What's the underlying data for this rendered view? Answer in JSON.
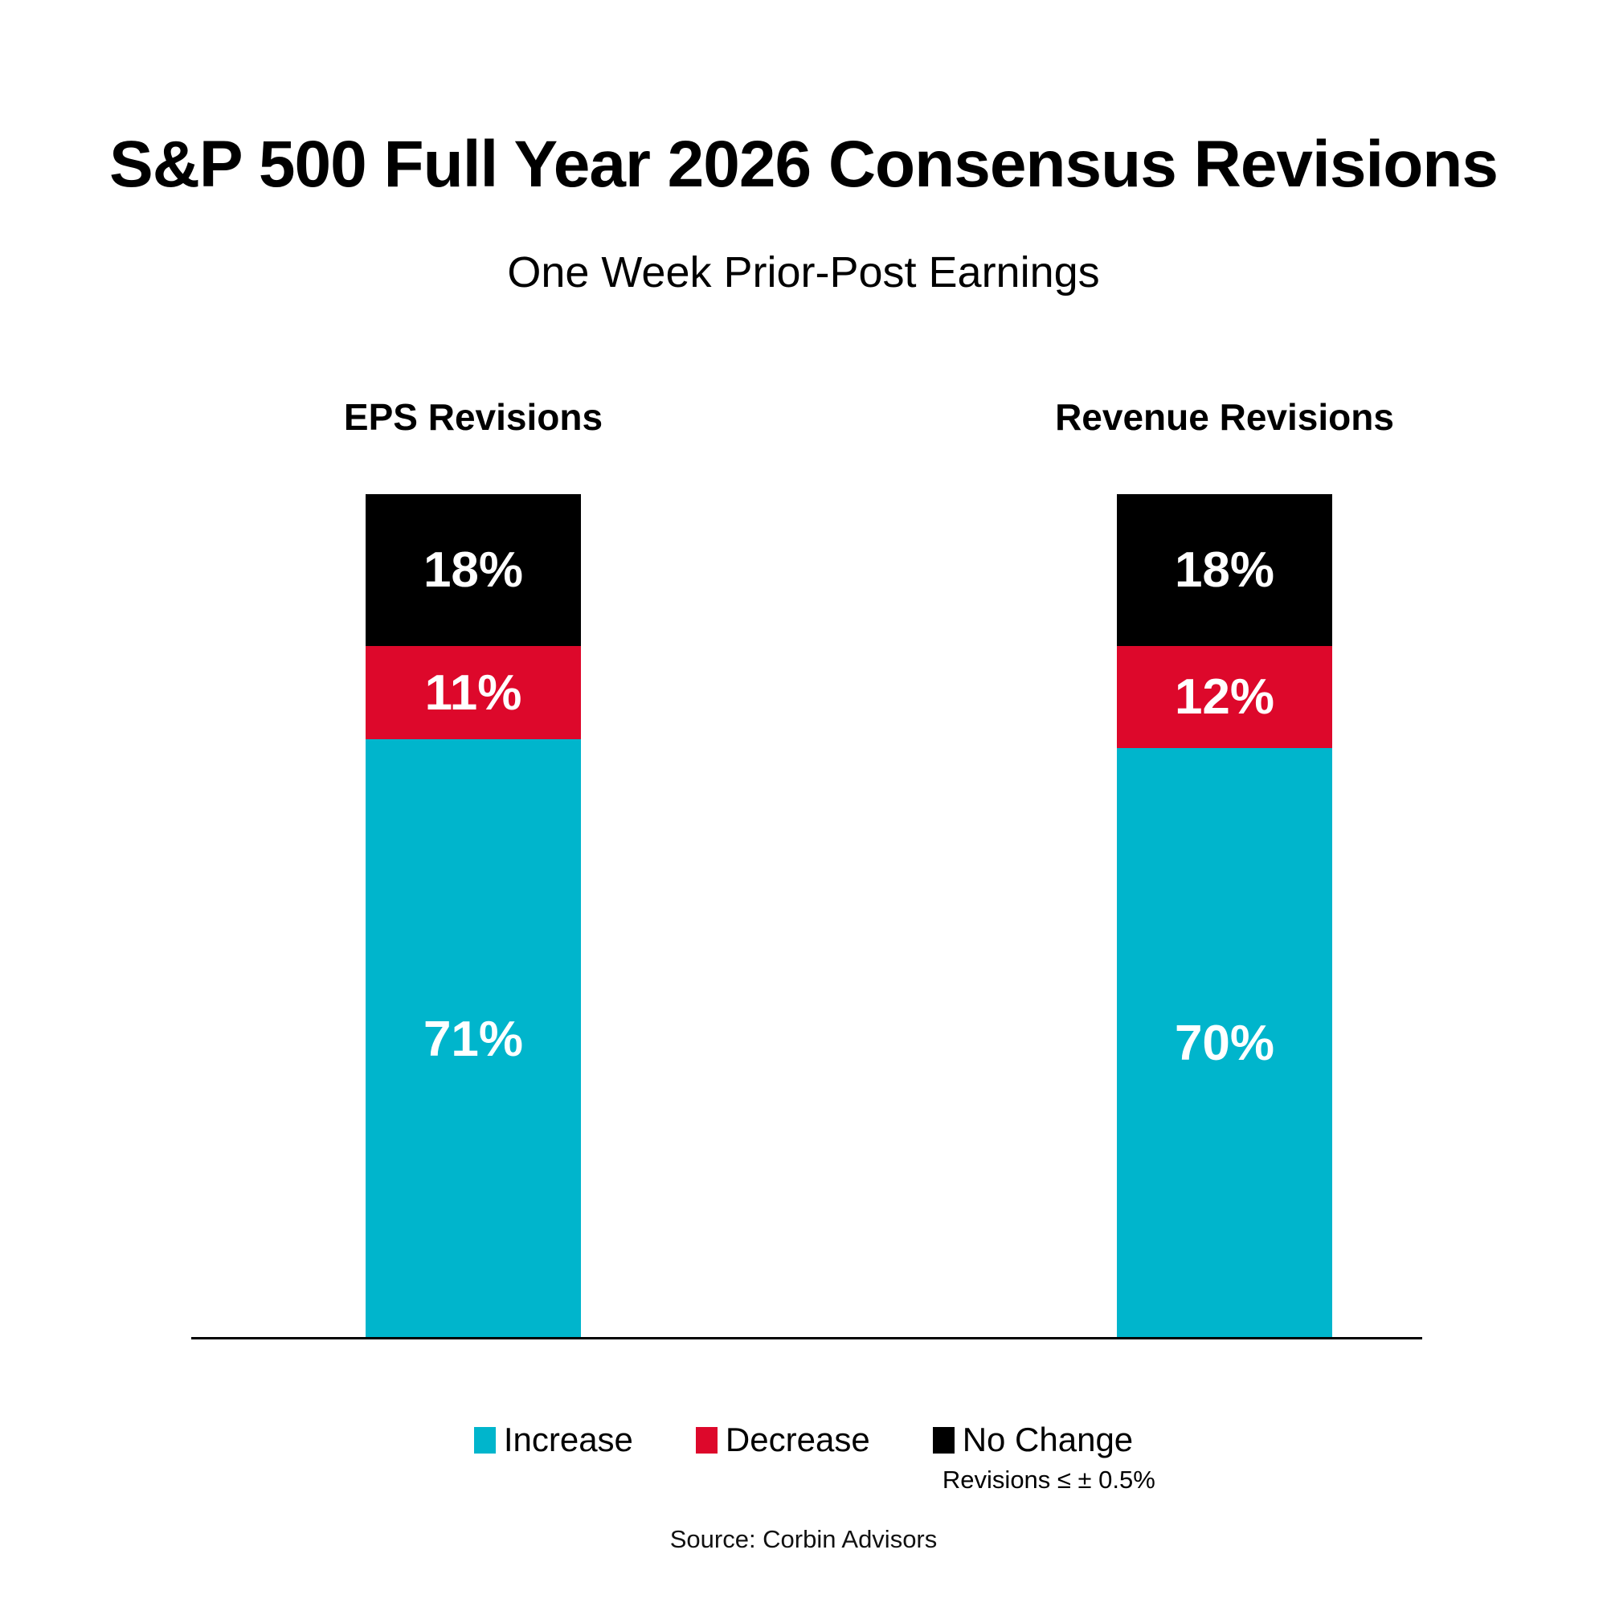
{
  "title": "S&P 500 Full Year 2026 Consensus Revisions",
  "subtitle": "One Week Prior-Post Earnings",
  "chart_data": {
    "type": "bar",
    "subtype": "stacked-percent-column",
    "categories": [
      "EPS Revisions",
      "Revenue Revisions"
    ],
    "series": [
      {
        "name": "Increase",
        "color": "#00B5CC",
        "values": [
          71,
          70
        ]
      },
      {
        "name": "Decrease",
        "color": "#DD082B",
        "values": [
          11,
          12
        ]
      },
      {
        "name": "No Change",
        "color": "#000000",
        "values": [
          18,
          18
        ],
        "note": "Revisions ≤ ± 0.5%"
      }
    ],
    "stack_order_top_to_bottom": [
      "No Change",
      "Decrease",
      "Increase"
    ],
    "value_suffix": "%",
    "ylim": [
      0,
      100
    ],
    "grid": false,
    "axis_line_color": "#000000",
    "data_label_color": "#FFFFFF",
    "legend_position": "bottom"
  },
  "source": "Source: Corbin Advisors"
}
